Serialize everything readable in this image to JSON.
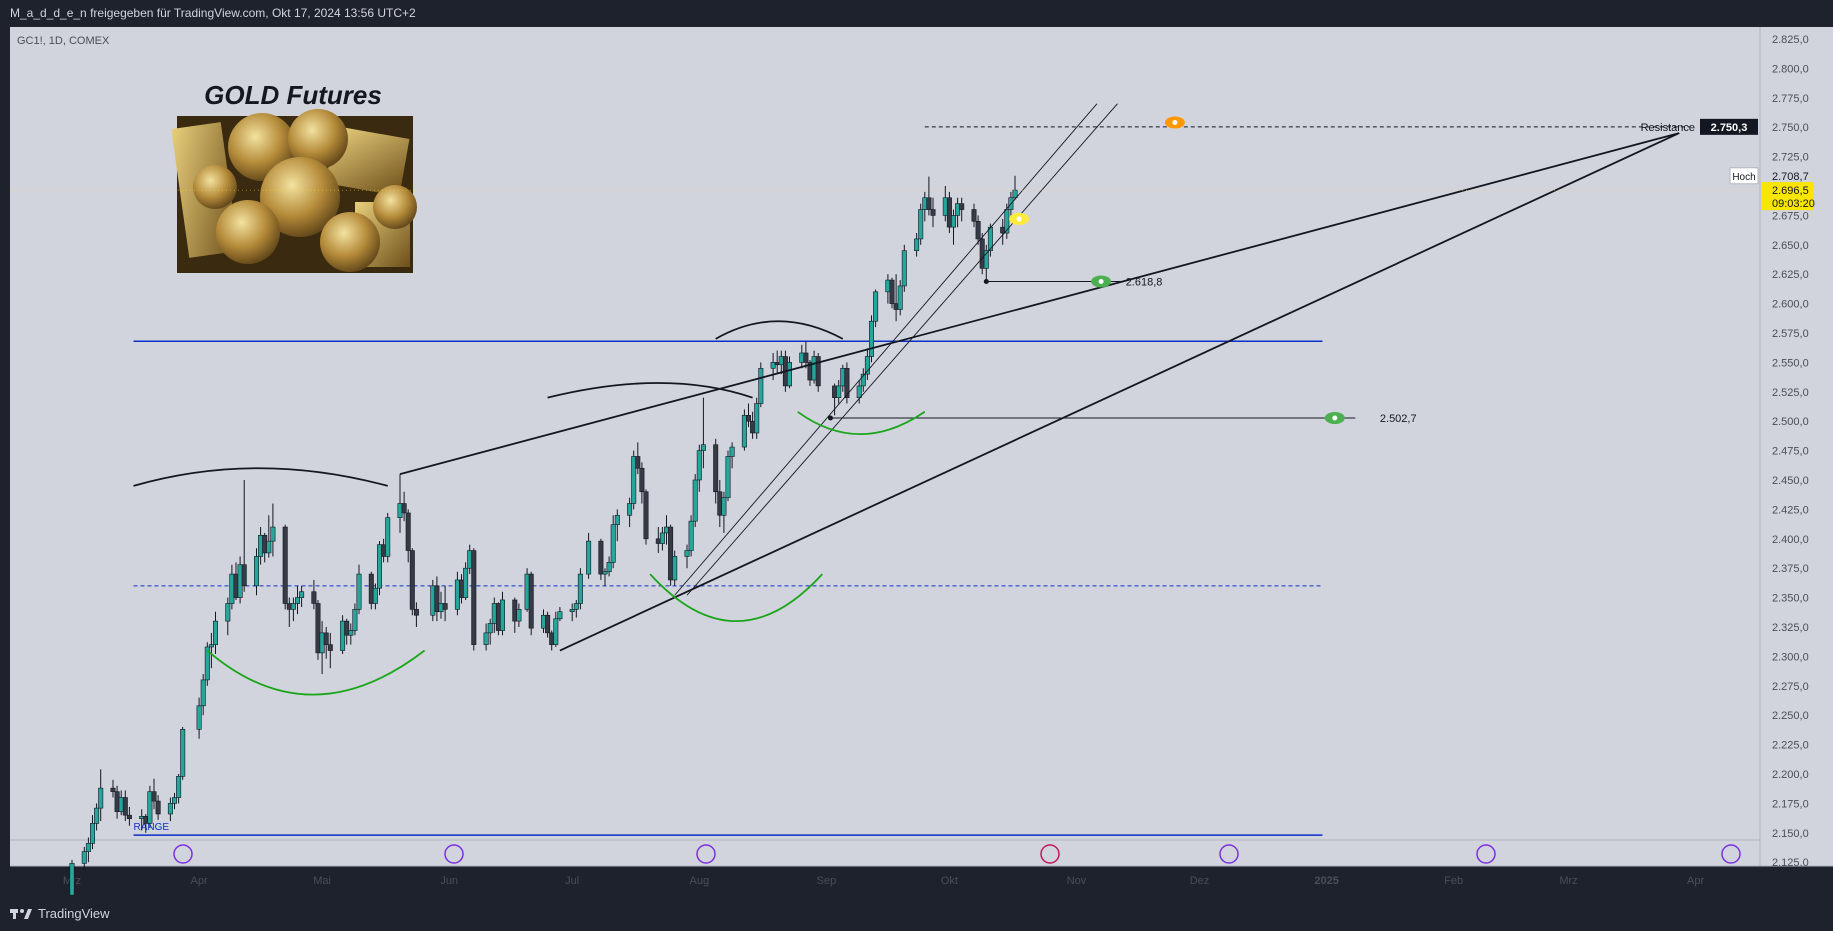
{
  "header": {
    "publisher_text": "M_a_d_d_e_n freigegeben für TradingView.com, Okt 17, 2024 13:56 UTC+2"
  },
  "footer": {
    "brand": "TradingView"
  },
  "colors": {
    "up": "#26a69a",
    "down": "#363a45",
    "support": "#0d2fc9",
    "arc": "#1aa51a",
    "bg": "#d1d4dc"
  },
  "chart_data": {
    "type": "candlestick",
    "symbol": "GC1!, 1D, COMEX",
    "title": "GOLD Futures",
    "y_ticks": [
      "2.825,0",
      "2.800,0",
      "2.775,0",
      "2.750,0",
      "2.725,0",
      "2.700,0",
      "2.675,0",
      "2.650,0",
      "2.625,0",
      "2.600,0",
      "2.575,0",
      "2.550,0",
      "2.525,0",
      "2.500,0",
      "2.475,0",
      "2.450,0",
      "2.425,0",
      "2.400,0",
      "2.375,0",
      "2.350,0",
      "2.325,0",
      "2.300,0",
      "2.275,0",
      "2.250,0",
      "2.225,0",
      "2.200,0",
      "2.175,0",
      "2.150,0",
      "2.125,0"
    ],
    "x_ticks": [
      {
        "label": "Mrz",
        "date": "2024-03-01"
      },
      {
        "label": "Apr",
        "date": "2024-04-01"
      },
      {
        "label": "Mai",
        "date": "2024-05-01"
      },
      {
        "label": "Jun",
        "date": "2024-06-01"
      },
      {
        "label": "Jul",
        "date": "2024-07-01"
      },
      {
        "label": "Aug",
        "date": "2024-08-01"
      },
      {
        "label": "Sep",
        "date": "2024-09-01"
      },
      {
        "label": "Okt",
        "date": "2024-10-01"
      },
      {
        "label": "Nov",
        "date": "2024-11-01"
      },
      {
        "label": "Dez",
        "date": "2024-12-01"
      },
      {
        "label": "2025",
        "date": "2025-01-01"
      },
      {
        "label": "Feb",
        "date": "2025-02-01"
      },
      {
        "label": "Mrz",
        "date": "2025-03-01"
      },
      {
        "label": "Apr",
        "date": "2025-04-01"
      }
    ],
    "price_labels": {
      "resistance_text": "Resistance",
      "resistance_value": "2.750,3",
      "high_text": "Hoch",
      "high_value": "2.708,7",
      "last_value": "2.696,5",
      "countdown": "09:03:20"
    },
    "levels": {
      "support_upper": "2.618,8",
      "support_lower": "2.502,7",
      "range_text": "RANGE"
    },
    "candles": [
      [
        "2024-03-01",
        2097,
        2127,
        2090,
        2124
      ],
      [
        "2024-03-04",
        2124,
        2138,
        2118,
        2134
      ],
      [
        "2024-03-05",
        2134,
        2146,
        2125,
        2141
      ],
      [
        "2024-03-06",
        2141,
        2165,
        2136,
        2158
      ],
      [
        "2024-03-07",
        2158,
        2175,
        2152,
        2171
      ],
      [
        "2024-03-08",
        2171,
        2204,
        2160,
        2188
      ],
      [
        "2024-03-11",
        2188,
        2195,
        2180,
        2185
      ],
      [
        "2024-03-12",
        2185,
        2190,
        2162,
        2168
      ],
      [
        "2024-03-13",
        2168,
        2186,
        2165,
        2180
      ],
      [
        "2024-03-14",
        2180,
        2186,
        2160,
        2165
      ],
      [
        "2024-03-15",
        2165,
        2172,
        2156,
        2162
      ],
      [
        "2024-03-18",
        2162,
        2170,
        2152,
        2164
      ],
      [
        "2024-03-19",
        2164,
        2166,
        2150,
        2158
      ],
      [
        "2024-03-20",
        2158,
        2190,
        2154,
        2185
      ],
      [
        "2024-03-21",
        2185,
        2196,
        2170,
        2177
      ],
      [
        "2024-03-22",
        2177,
        2182,
        2161,
        2166
      ],
      [
        "2024-03-25",
        2166,
        2180,
        2160,
        2175
      ],
      [
        "2024-03-26",
        2175,
        2184,
        2170,
        2180
      ],
      [
        "2024-03-27",
        2180,
        2200,
        2175,
        2198
      ],
      [
        "2024-03-28",
        2198,
        2240,
        2195,
        2238
      ],
      [
        "2024-04-01",
        2238,
        2265,
        2230,
        2258
      ],
      [
        "2024-04-02",
        2258,
        2285,
        2250,
        2280
      ],
      [
        "2024-04-03",
        2280,
        2312,
        2275,
        2308
      ],
      [
        "2024-04-04",
        2308,
        2320,
        2290,
        2310
      ],
      [
        "2024-04-05",
        2310,
        2338,
        2302,
        2330
      ],
      [
        "2024-04-08",
        2330,
        2350,
        2318,
        2345
      ],
      [
        "2024-04-09",
        2345,
        2378,
        2340,
        2370
      ],
      [
        "2024-04-10",
        2370,
        2380,
        2348,
        2350
      ],
      [
        "2024-04-11",
        2350,
        2385,
        2345,
        2378
      ],
      [
        "2024-04-12",
        2378,
        2450,
        2355,
        2360
      ],
      [
        "2024-04-15",
        2360,
        2392,
        2352,
        2385
      ],
      [
        "2024-04-16",
        2385,
        2410,
        2378,
        2403
      ],
      [
        "2024-04-17",
        2403,
        2405,
        2380,
        2388
      ],
      [
        "2024-04-18",
        2388,
        2420,
        2384,
        2398
      ],
      [
        "2024-04-19",
        2398,
        2430,
        2385,
        2410
      ],
      [
        "2024-04-22",
        2410,
        2412,
        2340,
        2345
      ],
      [
        "2024-04-23",
        2345,
        2350,
        2325,
        2340
      ],
      [
        "2024-04-24",
        2340,
        2350,
        2330,
        2345
      ],
      [
        "2024-04-25",
        2345,
        2360,
        2336,
        2350
      ],
      [
        "2024-04-26",
        2350,
        2360,
        2342,
        2355
      ],
      [
        "2024-04-29",
        2355,
        2365,
        2340,
        2345
      ],
      [
        "2024-04-30",
        2345,
        2348,
        2297,
        2303
      ],
      [
        "2024-05-01",
        2303,
        2330,
        2285,
        2320
      ],
      [
        "2024-05-02",
        2320,
        2325,
        2298,
        2310
      ],
      [
        "2024-05-03",
        2310,
        2320,
        2290,
        2305
      ],
      [
        "2024-05-06",
        2305,
        2335,
        2302,
        2330
      ],
      [
        "2024-05-07",
        2330,
        2332,
        2310,
        2318
      ],
      [
        "2024-05-08",
        2318,
        2328,
        2310,
        2322
      ],
      [
        "2024-05-09",
        2322,
        2345,
        2318,
        2340
      ],
      [
        "2024-05-10",
        2340,
        2378,
        2336,
        2370
      ],
      [
        "2024-05-13",
        2370,
        2372,
        2340,
        2345
      ],
      [
        "2024-05-14",
        2345,
        2362,
        2340,
        2358
      ],
      [
        "2024-05-15",
        2358,
        2398,
        2352,
        2395
      ],
      [
        "2024-05-16",
        2395,
        2400,
        2380,
        2385
      ],
      [
        "2024-05-17",
        2385,
        2422,
        2380,
        2418
      ],
      [
        "2024-05-20",
        2418,
        2455,
        2405,
        2430
      ],
      [
        "2024-05-21",
        2430,
        2440,
        2415,
        2422
      ],
      [
        "2024-05-22",
        2422,
        2425,
        2380,
        2390
      ],
      [
        "2024-05-23",
        2390,
        2392,
        2335,
        2340
      ],
      [
        "2024-05-24",
        2340,
        2346,
        2325,
        2335
      ],
      [
        "2024-05-28",
        2335,
        2365,
        2330,
        2360
      ],
      [
        "2024-05-29",
        2360,
        2368,
        2330,
        2338
      ],
      [
        "2024-05-30",
        2338,
        2355,
        2332,
        2345
      ],
      [
        "2024-05-31",
        2345,
        2360,
        2330,
        2340
      ],
      [
        "2024-06-03",
        2340,
        2372,
        2335,
        2365
      ],
      [
        "2024-06-04",
        2365,
        2370,
        2345,
        2350
      ],
      [
        "2024-06-05",
        2350,
        2380,
        2348,
        2375
      ],
      [
        "2024-06-06",
        2375,
        2395,
        2370,
        2390
      ],
      [
        "2024-06-07",
        2390,
        2392,
        2305,
        2310
      ],
      [
        "2024-06-10",
        2310,
        2328,
        2305,
        2320
      ],
      [
        "2024-06-11",
        2320,
        2332,
        2310,
        2328
      ],
      [
        "2024-06-12",
        2328,
        2350,
        2320,
        2345
      ],
      [
        "2024-06-13",
        2345,
        2346,
        2318,
        2322
      ],
      [
        "2024-06-14",
        2322,
        2355,
        2318,
        2348
      ],
      [
        "2024-06-17",
        2348,
        2350,
        2320,
        2330
      ],
      [
        "2024-06-18",
        2330,
        2345,
        2325,
        2340
      ],
      [
        "2024-06-20",
        2340,
        2375,
        2338,
        2370
      ],
      [
        "2024-06-21",
        2370,
        2372,
        2318,
        2324
      ],
      [
        "2024-06-24",
        2324,
        2340,
        2320,
        2335
      ],
      [
        "2024-06-25",
        2335,
        2338,
        2316,
        2320
      ],
      [
        "2024-06-26",
        2320,
        2322,
        2305,
        2310
      ],
      [
        "2024-06-27",
        2310,
        2338,
        2308,
        2332
      ],
      [
        "2024-06-28",
        2332,
        2342,
        2330,
        2338
      ],
      [
        "2024-07-01",
        2338,
        2345,
        2330,
        2340
      ],
      [
        "2024-07-02",
        2340,
        2348,
        2333,
        2345
      ],
      [
        "2024-07-03",
        2345,
        2375,
        2340,
        2370
      ],
      [
        "2024-07-05",
        2370,
        2405,
        2366,
        2398
      ],
      [
        "2024-07-08",
        2398,
        2400,
        2365,
        2370
      ],
      [
        "2024-07-09",
        2370,
        2375,
        2360,
        2372
      ],
      [
        "2024-07-10",
        2372,
        2385,
        2368,
        2380
      ],
      [
        "2024-07-11",
        2380,
        2420,
        2375,
        2412
      ],
      [
        "2024-07-12",
        2412,
        2425,
        2398,
        2420
      ],
      [
        "2024-07-15",
        2420,
        2435,
        2410,
        2430
      ],
      [
        "2024-07-16",
        2430,
        2475,
        2425,
        2470
      ],
      [
        "2024-07-17",
        2470,
        2482,
        2455,
        2460
      ],
      [
        "2024-07-18",
        2460,
        2465,
        2430,
        2440
      ],
      [
        "2024-07-19",
        2440,
        2442,
        2395,
        2400
      ],
      [
        "2024-07-22",
        2400,
        2410,
        2388,
        2396
      ],
      [
        "2024-07-23",
        2396,
        2410,
        2390,
        2405
      ],
      [
        "2024-07-24",
        2405,
        2420,
        2395,
        2410
      ],
      [
        "2024-07-25",
        2410,
        2412,
        2360,
        2365
      ],
      [
        "2024-07-26",
        2365,
        2390,
        2360,
        2385
      ],
      [
        "2024-07-29",
        2385,
        2395,
        2375,
        2390
      ],
      [
        "2024-07-30",
        2390,
        2420,
        2385,
        2415
      ],
      [
        "2024-07-31",
        2415,
        2455,
        2410,
        2450
      ],
      [
        "2024-08-01",
        2450,
        2480,
        2440,
        2475
      ],
      [
        "2024-08-02",
        2475,
        2520,
        2460,
        2480
      ],
      [
        "2024-08-05",
        2480,
        2485,
        2430,
        2440
      ],
      [
        "2024-08-06",
        2440,
        2450,
        2410,
        2420
      ],
      [
        "2024-08-07",
        2420,
        2440,
        2405,
        2435
      ],
      [
        "2024-08-08",
        2435,
        2475,
        2432,
        2470
      ],
      [
        "2024-08-09",
        2470,
        2482,
        2460,
        2478
      ],
      [
        "2024-08-12",
        2478,
        2510,
        2475,
        2505
      ],
      [
        "2024-08-13",
        2505,
        2515,
        2495,
        2500
      ],
      [
        "2024-08-14",
        2500,
        2508,
        2485,
        2490
      ],
      [
        "2024-08-15",
        2490,
        2520,
        2485,
        2515
      ],
      [
        "2024-08-16",
        2515,
        2550,
        2512,
        2545
      ],
      [
        "2024-08-19",
        2545,
        2558,
        2535,
        2550
      ],
      [
        "2024-08-20",
        2550,
        2560,
        2540,
        2548
      ],
      [
        "2024-08-21",
        2548,
        2560,
        2540,
        2555
      ],
      [
        "2024-08-22",
        2555,
        2560,
        2525,
        2530
      ],
      [
        "2024-08-23",
        2530,
        2555,
        2528,
        2550
      ],
      [
        "2024-08-26",
        2550,
        2565,
        2545,
        2558
      ],
      [
        "2024-08-27",
        2558,
        2568,
        2545,
        2550
      ],
      [
        "2024-08-28",
        2550,
        2552,
        2530,
        2535
      ],
      [
        "2024-08-29",
        2535,
        2560,
        2532,
        2555
      ],
      [
        "2024-08-30",
        2555,
        2558,
        2525,
        2530
      ],
      [
        "2024-09-03",
        2530,
        2532,
        2505,
        2520
      ],
      [
        "2024-09-04",
        2520,
        2535,
        2515,
        2530
      ],
      [
        "2024-09-05",
        2530,
        2548,
        2525,
        2545
      ],
      [
        "2024-09-06",
        2545,
        2550,
        2515,
        2520
      ],
      [
        "2024-09-09",
        2520,
        2535,
        2515,
        2530
      ],
      [
        "2024-09-10",
        2530,
        2545,
        2525,
        2540
      ],
      [
        "2024-09-11",
        2540,
        2562,
        2535,
        2555
      ],
      [
        "2024-09-12",
        2555,
        2590,
        2550,
        2585
      ],
      [
        "2024-09-13",
        2585,
        2612,
        2580,
        2610
      ],
      [
        "2024-09-16",
        2610,
        2625,
        2600,
        2620
      ],
      [
        "2024-09-17",
        2620,
        2622,
        2596,
        2600
      ],
      [
        "2024-09-18",
        2600,
        2625,
        2585,
        2595
      ],
      [
        "2024-09-19",
        2595,
        2620,
        2590,
        2615
      ],
      [
        "2024-09-20",
        2615,
        2650,
        2610,
        2645
      ],
      [
        "2024-09-23",
        2645,
        2660,
        2640,
        2655
      ],
      [
        "2024-09-24",
        2655,
        2685,
        2650,
        2680
      ],
      [
        "2024-09-25",
        2680,
        2695,
        2670,
        2690
      ],
      [
        "2024-09-26",
        2690,
        2708,
        2675,
        2680
      ],
      [
        "2024-09-27",
        2680,
        2690,
        2665,
        2675
      ],
      [
        "2024-09-30",
        2675,
        2700,
        2670,
        2690
      ],
      [
        "2024-10-01",
        2690,
        2695,
        2660,
        2665
      ],
      [
        "2024-10-02",
        2665,
        2680,
        2650,
        2675
      ],
      [
        "2024-10-03",
        2675,
        2690,
        2665,
        2685
      ],
      [
        "2024-10-04",
        2685,
        2690,
        2670,
        2680
      ],
      [
        "2024-10-07",
        2680,
        2685,
        2665,
        2670
      ],
      [
        "2024-10-08",
        2670,
        2675,
        2650,
        2655
      ],
      [
        "2024-10-09",
        2655,
        2660,
        2625,
        2630
      ],
      [
        "2024-10-10",
        2630,
        2650,
        2619,
        2645
      ],
      [
        "2024-10-11",
        2645,
        2668,
        2640,
        2665
      ],
      [
        "2024-10-14",
        2665,
        2672,
        2650,
        2660
      ],
      [
        "2024-10-15",
        2660,
        2685,
        2655,
        2680
      ],
      [
        "2024-10-16",
        2680,
        2695,
        2675,
        2690
      ],
      [
        "2024-10-17",
        2690,
        2708.7,
        2688,
        2696.5
      ]
    ]
  }
}
